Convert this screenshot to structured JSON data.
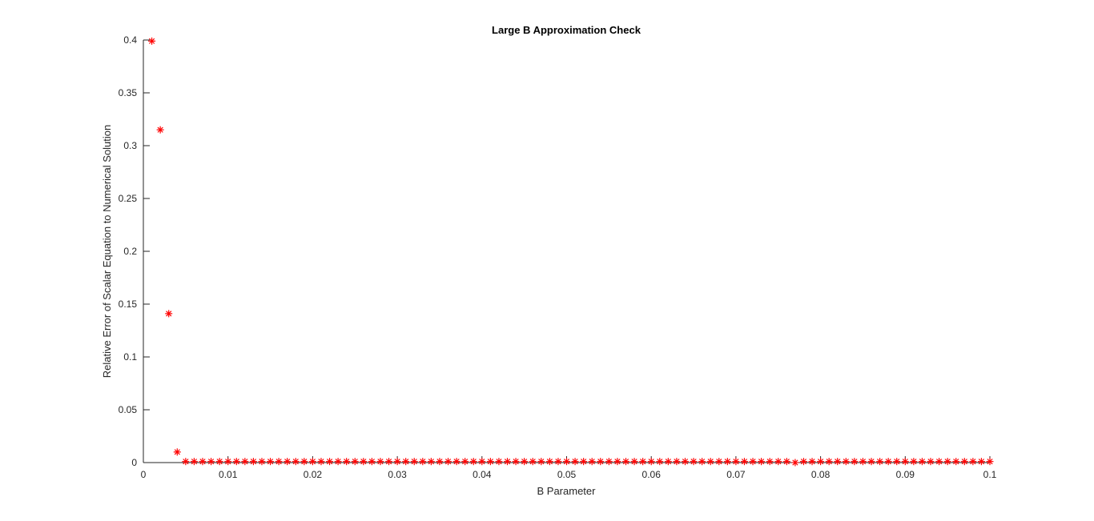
{
  "chart_data": {
    "type": "scatter",
    "title": "Large B Approximation Check",
    "xlabel": "B Parameter",
    "ylabel": "Relative Error of Scalar Equation to Numerical Solution",
    "xlim": [
      0,
      0.1
    ],
    "ylim": [
      0,
      0.4
    ],
    "xticks": [
      0,
      0.01,
      0.02,
      0.03,
      0.04,
      0.05,
      0.06,
      0.07,
      0.08,
      0.09,
      0.1
    ],
    "xtick_labels": [
      "0",
      "0.01",
      "0.02",
      "0.03",
      "0.04",
      "0.05",
      "0.06",
      "0.07",
      "0.08",
      "0.09",
      "0.1"
    ],
    "yticks": [
      0,
      0.05,
      0.1,
      0.15,
      0.2,
      0.25,
      0.3,
      0.35,
      0.4
    ],
    "ytick_labels": [
      "0",
      "0.05",
      "0.1",
      "0.15",
      "0.2",
      "0.25",
      "0.3",
      "0.35",
      "0.4"
    ],
    "grid": false,
    "marker": "asterisk",
    "marker_color": "#ff0000",
    "series": [
      {
        "x": [
          0.001,
          0.002,
          0.003,
          0.004,
          0.005,
          0.006,
          0.007,
          0.008,
          0.009,
          0.01,
          0.011,
          0.012,
          0.013,
          0.014,
          0.015,
          0.016,
          0.017,
          0.018,
          0.019,
          0.02,
          0.021,
          0.022,
          0.023,
          0.024,
          0.025,
          0.026,
          0.027,
          0.028,
          0.029,
          0.03,
          0.031,
          0.032,
          0.033,
          0.034,
          0.035,
          0.036,
          0.037,
          0.038,
          0.039,
          0.04,
          0.041,
          0.042,
          0.043,
          0.044,
          0.045,
          0.046,
          0.047,
          0.048,
          0.049,
          0.05,
          0.051,
          0.052,
          0.053,
          0.054,
          0.055,
          0.056,
          0.057,
          0.058,
          0.059,
          0.06,
          0.061,
          0.062,
          0.063,
          0.064,
          0.065,
          0.066,
          0.067,
          0.068,
          0.069,
          0.07,
          0.071,
          0.072,
          0.073,
          0.074,
          0.075,
          0.076,
          0.077,
          0.078,
          0.079,
          0.08,
          0.081,
          0.082,
          0.083,
          0.084,
          0.085,
          0.086,
          0.087,
          0.088,
          0.089,
          0.09,
          0.091,
          0.092,
          0.093,
          0.094,
          0.095,
          0.096,
          0.097,
          0.098,
          0.099,
          0.1
        ],
        "y": [
          0.399,
          0.315,
          0.141,
          0.01,
          0.001,
          0.001,
          0.001,
          0.001,
          0.001,
          0.001,
          0.001,
          0.001,
          0.001,
          0.001,
          0.001,
          0.001,
          0.001,
          0.001,
          0.001,
          0.001,
          0.001,
          0.001,
          0.001,
          0.001,
          0.001,
          0.001,
          0.001,
          0.001,
          0.001,
          0.001,
          0.001,
          0.001,
          0.001,
          0.001,
          0.001,
          0.001,
          0.001,
          0.001,
          0.001,
          0.001,
          0.001,
          0.001,
          0.001,
          0.001,
          0.001,
          0.001,
          0.001,
          0.001,
          0.001,
          0.001,
          0.001,
          0.001,
          0.001,
          0.001,
          0.001,
          0.001,
          0.001,
          0.001,
          0.001,
          0.001,
          0.001,
          0.001,
          0.001,
          0.001,
          0.001,
          0.001,
          0.001,
          0.001,
          0.001,
          0.001,
          0.001,
          0.001,
          0.001,
          0.001,
          0.001,
          0.001,
          0.0,
          0.001,
          0.001,
          0.001,
          0.001,
          0.001,
          0.001,
          0.001,
          0.001,
          0.001,
          0.001,
          0.001,
          0.001,
          0.001,
          0.001,
          0.001,
          0.001,
          0.001,
          0.001,
          0.001,
          0.001,
          0.001,
          0.001,
          0.001
        ]
      }
    ]
  }
}
